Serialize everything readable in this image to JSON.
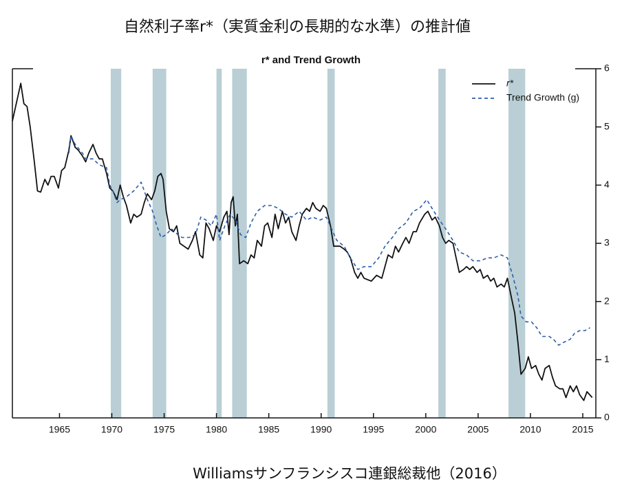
{
  "chart_data": {
    "type": "line",
    "heading": "自然利子率r*（実質金利の長期的な水準）の推計値",
    "title": "r* and Trend Growth",
    "source": "Williamsサンフランシスコ連銀総裁他（2016）",
    "xlim": [
      1960.5,
      2016.25
    ],
    "xticks": [
      1965,
      1970,
      1975,
      1980,
      1985,
      1990,
      1995,
      2000,
      2005,
      2010,
      2015
    ],
    "ylim": [
      0,
      6
    ],
    "yticks": [
      0,
      1,
      2,
      3,
      4,
      5,
      6
    ],
    "y_axis_side": "right",
    "legend": "upper right",
    "shade_color": "#b9cfd5",
    "shaded_periods": [
      [
        1969.9,
        1970.9
      ],
      [
        1973.9,
        1975.2
      ],
      [
        1980.0,
        1980.5
      ],
      [
        1981.5,
        1982.9
      ],
      [
        1990.6,
        1991.3
      ],
      [
        2001.2,
        2001.9
      ],
      [
        2007.9,
        2009.5
      ]
    ],
    "series": [
      {
        "name": "r*",
        "color": "#111111",
        "dash": "solid",
        "x": [
          1960.5,
          1961.3,
          1961.6,
          1961.9,
          1962.2,
          1962.6,
          1962.9,
          1963.2,
          1963.6,
          1963.9,
          1964.2,
          1964.5,
          1964.9,
          1965.2,
          1965.5,
          1965.9,
          1966.1,
          1966.5,
          1966.8,
          1967.2,
          1967.5,
          1967.8,
          1968.2,
          1968.5,
          1968.8,
          1969.1,
          1969.5,
          1969.8,
          1970.1,
          1970.5,
          1970.8,
          1971.1,
          1971.4,
          1971.8,
          1972.1,
          1972.4,
          1972.8,
          1973.1,
          1973.4,
          1973.8,
          1974.1,
          1974.4,
          1974.7,
          1974.9,
          1975.2,
          1975.5,
          1975.9,
          1976.2,
          1976.5,
          1976.9,
          1977.3,
          1977.7,
          1978.0,
          1978.4,
          1978.7,
          1979.0,
          1979.3,
          1979.7,
          1980.0,
          1980.3,
          1980.7,
          1981.0,
          1981.2,
          1981.4,
          1981.6,
          1981.8,
          1982.0,
          1982.2,
          1982.6,
          1983.0,
          1983.3,
          1983.6,
          1983.9,
          1984.3,
          1984.6,
          1984.9,
          1985.3,
          1985.6,
          1985.9,
          1986.3,
          1986.6,
          1986.9,
          1987.2,
          1987.6,
          1987.9,
          1988.2,
          1988.6,
          1988.9,
          1989.2,
          1989.5,
          1989.9,
          1990.2,
          1990.5,
          1990.9,
          1991.2,
          1991.5,
          1991.8,
          1992.2,
          1992.5,
          1992.8,
          1993.2,
          1993.5,
          1993.8,
          1994.1,
          1994.8,
          1995.3,
          1995.8,
          1996.1,
          1996.4,
          1996.8,
          1997.1,
          1997.4,
          1997.8,
          1998.1,
          1998.4,
          1998.8,
          1999.1,
          1999.4,
          1999.9,
          2000.2,
          2000.6,
          2000.9,
          2001.3,
          2001.6,
          2001.9,
          2002.2,
          2002.6,
          2002.9,
          2003.2,
          2003.6,
          2003.9,
          2004.2,
          2004.5,
          2004.9,
          2005.2,
          2005.5,
          2005.9,
          2006.2,
          2006.5,
          2006.8,
          2007.2,
          2007.5,
          2007.8,
          2008.2,
          2008.5,
          2008.8,
          2009.1,
          2009.5,
          2009.8,
          2010.1,
          2010.5,
          2010.8,
          2011.1,
          2011.4,
          2011.8,
          2012.1,
          2012.4,
          2012.8,
          2013.1,
          2013.4,
          2013.8,
          2014.1,
          2014.4,
          2014.7,
          2015.1,
          2015.4,
          2015.9
        ],
        "values": [
          5.1,
          5.75,
          5.4,
          5.35,
          5.0,
          4.4,
          3.9,
          3.88,
          4.1,
          4.0,
          4.15,
          4.15,
          3.95,
          4.25,
          4.3,
          4.6,
          4.85,
          4.65,
          4.6,
          4.5,
          4.4,
          4.55,
          4.7,
          4.55,
          4.45,
          4.45,
          4.2,
          3.95,
          3.9,
          3.75,
          4.0,
          3.8,
          3.65,
          3.35,
          3.5,
          3.45,
          3.5,
          3.7,
          3.85,
          3.75,
          3.9,
          4.15,
          4.2,
          4.1,
          3.55,
          3.25,
          3.2,
          3.3,
          3.0,
          2.95,
          2.9,
          3.05,
          3.2,
          2.8,
          2.75,
          3.35,
          3.25,
          3.05,
          3.3,
          3.2,
          3.45,
          3.55,
          3.15,
          3.7,
          3.8,
          3.3,
          3.5,
          2.65,
          2.7,
          2.65,
          2.8,
          2.75,
          3.05,
          2.95,
          3.3,
          3.35,
          3.1,
          3.5,
          3.25,
          3.55,
          3.35,
          3.45,
          3.2,
          3.05,
          3.3,
          3.5,
          3.6,
          3.55,
          3.7,
          3.6,
          3.55,
          3.65,
          3.6,
          3.3,
          2.95,
          2.95,
          2.95,
          2.9,
          2.85,
          2.75,
          2.5,
          2.4,
          2.5,
          2.4,
          2.35,
          2.45,
          2.4,
          2.6,
          2.8,
          2.75,
          2.95,
          2.85,
          3.0,
          3.1,
          3.0,
          3.2,
          3.2,
          3.35,
          3.5,
          3.55,
          3.4,
          3.45,
          3.3,
          3.1,
          3.0,
          3.05,
          3.0,
          2.75,
          2.5,
          2.55,
          2.6,
          2.55,
          2.6,
          2.5,
          2.55,
          2.4,
          2.45,
          2.35,
          2.4,
          2.25,
          2.3,
          2.25,
          2.4,
          2.05,
          1.8,
          1.3,
          0.75,
          0.85,
          1.05,
          0.85,
          0.9,
          0.75,
          0.65,
          0.85,
          0.9,
          0.7,
          0.55,
          0.5,
          0.5,
          0.35,
          0.55,
          0.45,
          0.55,
          0.4,
          0.3,
          0.45,
          0.35
        ]
      },
      {
        "name": "Trend Growth (g)",
        "color": "#2b5ea8",
        "dash": "dashed",
        "x": [
          1965.9,
          1966.1,
          1966.5,
          1967.2,
          1967.5,
          1968.2,
          1968.8,
          1969.5,
          1969.8,
          1970.1,
          1970.5,
          1970.8,
          1971.4,
          1972.1,
          1972.8,
          1973.1,
          1973.4,
          1973.9,
          1974.3,
          1974.7,
          1975.2,
          1975.7,
          1976.3,
          1976.7,
          1977.4,
          1978.0,
          1978.5,
          1979.0,
          1979.5,
          1980.0,
          1980.3,
          1980.8,
          1981.3,
          1981.8,
          1982.3,
          1982.8,
          1983.3,
          1983.9,
          1984.6,
          1985.3,
          1985.9,
          1986.6,
          1987.2,
          1987.9,
          1988.6,
          1989.2,
          1989.9,
          1990.5,
          1991.0,
          1991.5,
          1992.2,
          1992.8,
          1993.5,
          1994.1,
          1994.8,
          1995.5,
          1996.1,
          1996.8,
          1997.4,
          1998.1,
          1998.8,
          1999.4,
          2000.1,
          2000.6,
          2001.3,
          2001.9,
          2002.6,
          2003.2,
          2003.9,
          2004.5,
          2005.2,
          2005.9,
          2006.5,
          2007.2,
          2007.8,
          2008.3,
          2008.8,
          2009.1,
          2009.6,
          2010.1,
          2010.6,
          2011.1,
          2011.8,
          2012.2,
          2012.7,
          2013.2,
          2013.8,
          2014.2,
          2014.7,
          2015.2,
          2015.7
        ],
        "values": [
          4.55,
          4.85,
          4.7,
          4.55,
          4.45,
          4.45,
          4.35,
          4.3,
          4.0,
          3.9,
          3.7,
          3.75,
          3.8,
          3.9,
          4.05,
          3.9,
          3.75,
          3.55,
          3.3,
          3.1,
          3.15,
          3.25,
          3.15,
          3.1,
          3.1,
          3.15,
          3.45,
          3.4,
          3.3,
          3.5,
          3.05,
          3.3,
          3.5,
          3.4,
          3.15,
          3.1,
          3.35,
          3.55,
          3.65,
          3.65,
          3.6,
          3.5,
          3.45,
          3.55,
          3.4,
          3.45,
          3.4,
          3.45,
          3.25,
          3.05,
          2.95,
          2.75,
          2.55,
          2.6,
          2.6,
          2.75,
          2.95,
          3.1,
          3.25,
          3.35,
          3.55,
          3.6,
          3.75,
          3.6,
          3.4,
          3.25,
          3.05,
          2.85,
          2.8,
          2.7,
          2.7,
          2.75,
          2.75,
          2.8,
          2.75,
          2.45,
          2.1,
          1.75,
          1.65,
          1.65,
          1.55,
          1.4,
          1.4,
          1.35,
          1.25,
          1.3,
          1.35,
          1.45,
          1.5,
          1.5,
          1.55
        ]
      }
    ]
  }
}
